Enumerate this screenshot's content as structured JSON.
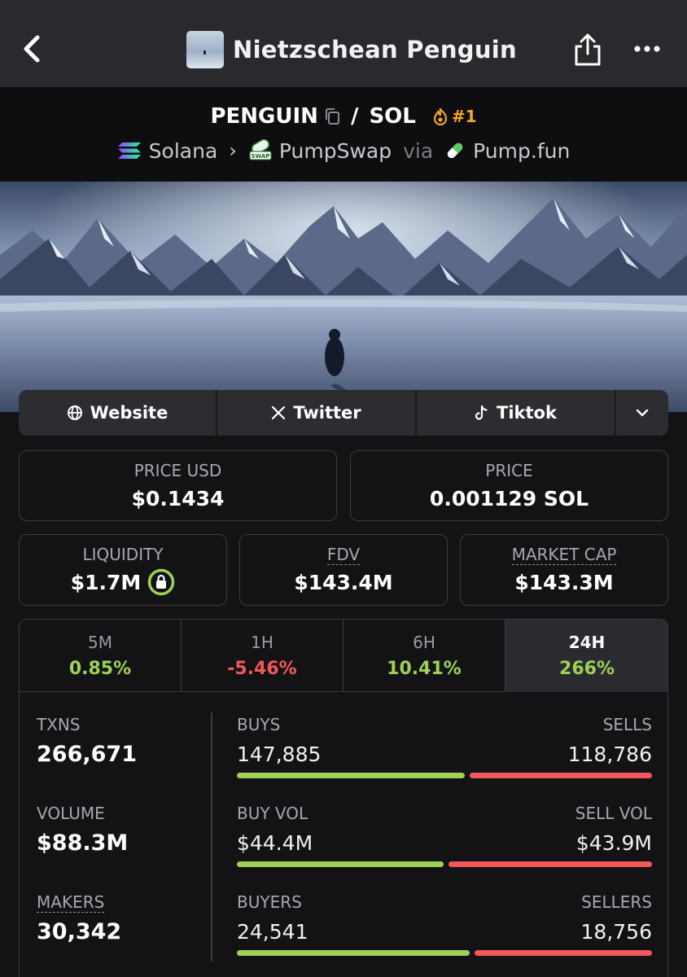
{
  "header": {
    "title": "Nietzschean Penguin"
  },
  "pair": {
    "base": "PENGUIN",
    "separator": "/",
    "quote": "SOL",
    "rank": "#1",
    "chain": "Solana",
    "dex": "PumpSwap",
    "via": "via",
    "launchpad": "Pump.fun"
  },
  "links": {
    "website": "Website",
    "twitter": "Twitter",
    "tiktok": "Tiktok"
  },
  "prices": {
    "price_usd_label": "PRICE USD",
    "price_usd": "$0.1434",
    "price_label": "PRICE",
    "price_native": "0.001129 SOL",
    "liquidity_label": "LIQUIDITY",
    "liquidity": "$1.7M",
    "fdv_label": "FDV",
    "fdv": "$143.4M",
    "mcap_label": "MARKET CAP",
    "mcap": "$143.3M"
  },
  "changes": [
    {
      "label": "5M",
      "value": "0.85%"
    },
    {
      "label": "1H",
      "value": "-5.46%"
    },
    {
      "label": "6H",
      "value": "10.41%"
    },
    {
      "label": "24H",
      "value": "266%"
    }
  ],
  "stats": {
    "txns_label": "TXNS",
    "txns": "266,671",
    "volume_label": "VOLUME",
    "volume": "$88.3M",
    "makers_label": "MAKERS",
    "makers": "30,342",
    "buys_label": "BUYS",
    "buys": "147,885",
    "sells_label": "SELLS",
    "sells": "118,786",
    "buy_vol_label": "BUY VOL",
    "buy_vol": "$44.4M",
    "sell_vol_label": "SELL VOL",
    "sell_vol": "$43.9M",
    "buyers_label": "BUYERS",
    "buyers": "24,541",
    "sellers_label": "SELLERS",
    "sellers": "18,756",
    "buys_share": 0.555,
    "buy_vol_share": 0.503,
    "buyers_share": 0.567
  },
  "colors": {
    "positive": "#9ed156",
    "negative": "#f2575a",
    "rank": "#f5a623"
  }
}
